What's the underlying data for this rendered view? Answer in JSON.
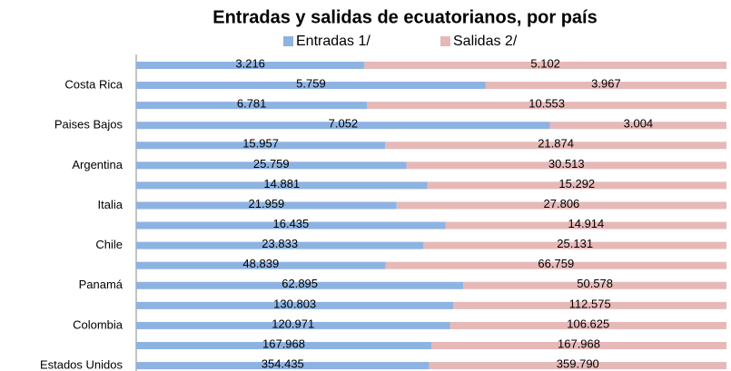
{
  "chart_data": {
    "type": "bar",
    "orientation": "horizontal",
    "stacking": "percent",
    "title": "Entradas y salidas de ecuatorianos, por país",
    "categories": [
      null,
      "Costa Rica",
      null,
      "Paises Bajos",
      null,
      "Argentina",
      null,
      "Italia",
      null,
      "Chile",
      null,
      "Panamá",
      null,
      "Colombia",
      null,
      "Estados Unidos"
    ],
    "legend": "top",
    "series": [
      {
        "name": "Entradas 1/",
        "color": "#8db3e2",
        "values": [
          3216,
          5759,
          6781,
          7052,
          15957,
          25759,
          14881,
          21959,
          16435,
          23833,
          48839,
          62895,
          130803,
          120971,
          167968,
          354435
        ],
        "value_labels": [
          "3.216",
          "5.759",
          "6.781",
          "7.052",
          "15.957",
          "25.759",
          "14.881",
          "21.959",
          "16.435",
          "23.833",
          "48.839",
          "62.895",
          "130.803",
          "120.971",
          "167.968",
          "354.435"
        ]
      },
      {
        "name": "Salidas 2/",
        "color": "#e6b9b8",
        "values": [
          5102,
          3967,
          10553,
          3004,
          21874,
          30513,
          15292,
          27806,
          14914,
          25131,
          66759,
          50578,
          112575,
          106625,
          167968,
          359790
        ],
        "value_labels": [
          "5.102",
          "3.967",
          "10.553",
          "3.004",
          "21.874",
          "30.513",
          "15.292",
          "27.806",
          "14.914",
          "25.131",
          "66.759",
          "50.578",
          "112.575",
          "106.625",
          "167.968",
          "359.790"
        ]
      }
    ]
  }
}
